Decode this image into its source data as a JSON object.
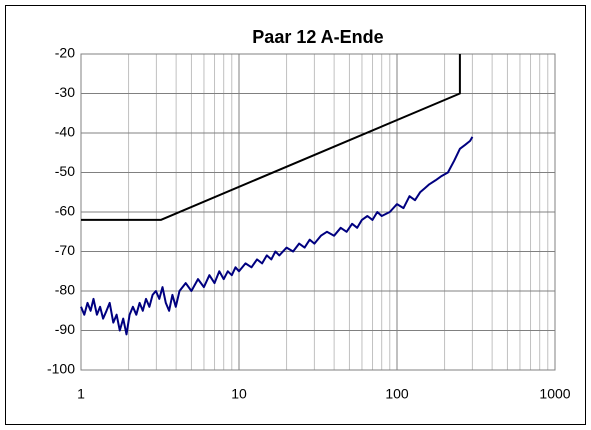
{
  "chart_data": {
    "type": "line",
    "title": "Paar 12 A-Ende",
    "xscale": "log",
    "xlim": [
      1,
      1000
    ],
    "xticks": [
      1,
      10,
      100,
      1000
    ],
    "xminorticks": [
      2,
      3,
      4,
      5,
      6,
      7,
      8,
      9,
      20,
      30,
      40,
      50,
      60,
      70,
      80,
      90,
      200,
      300,
      400,
      500,
      600,
      700,
      800,
      900
    ],
    "ylim": [
      -100,
      -20
    ],
    "yticks": [
      -20,
      -30,
      -40,
      -50,
      -60,
      -70,
      -80,
      -90,
      -100
    ],
    "grid": true,
    "series": [
      {
        "color": "#000000",
        "x": [
          1,
          3.2,
          250,
          250
        ],
        "values": [
          -62,
          -62,
          -30,
          -20
        ]
      },
      {
        "color": "#000080",
        "x": [
          1,
          1.05,
          1.1,
          1.15,
          1.2,
          1.26,
          1.32,
          1.38,
          1.45,
          1.52,
          1.6,
          1.68,
          1.76,
          1.85,
          1.94,
          2.03,
          2.13,
          2.24,
          2.35,
          2.46,
          2.58,
          2.71,
          2.84,
          2.98,
          3.13,
          3.28,
          3.44,
          3.61,
          3.79,
          3.98,
          4.2,
          4.6,
          5,
          5.5,
          6,
          6.5,
          7,
          7.5,
          8,
          8.5,
          9,
          9.5,
          10,
          11,
          12,
          13,
          14,
          15,
          16,
          17,
          18,
          20,
          22,
          24,
          26,
          28,
          30,
          33,
          36,
          40,
          44,
          48,
          52,
          56,
          60,
          65,
          70,
          75,
          80,
          90,
          100,
          110,
          120,
          130,
          140,
          150,
          160,
          175,
          190,
          210,
          230,
          250,
          270,
          290,
          300
        ],
        "values": [
          -84,
          -86,
          -83,
          -85,
          -82,
          -86,
          -84,
          -87,
          -85,
          -83,
          -88,
          -86,
          -90,
          -87,
          -91,
          -86,
          -84,
          -86,
          -83,
          -85,
          -82,
          -84,
          -81,
          -80,
          -82,
          -79,
          -83,
          -85,
          -81,
          -84,
          -80,
          -78,
          -80,
          -77,
          -79,
          -76,
          -78,
          -75,
          -77,
          -75,
          -76,
          -74,
          -75,
          -73,
          -74,
          -72,
          -73,
          -71,
          -72,
          -70,
          -71,
          -69,
          -70,
          -68,
          -69,
          -67,
          -68,
          -66,
          -65,
          -66,
          -64,
          -65,
          -63,
          -64,
          -62,
          -61,
          -62,
          -60,
          -61,
          -60,
          -58,
          -59,
          -56,
          -57,
          -55,
          -54,
          -53,
          -52,
          -51,
          -50,
          -47,
          -44,
          -43,
          -42,
          -41
        ]
      }
    ]
  }
}
